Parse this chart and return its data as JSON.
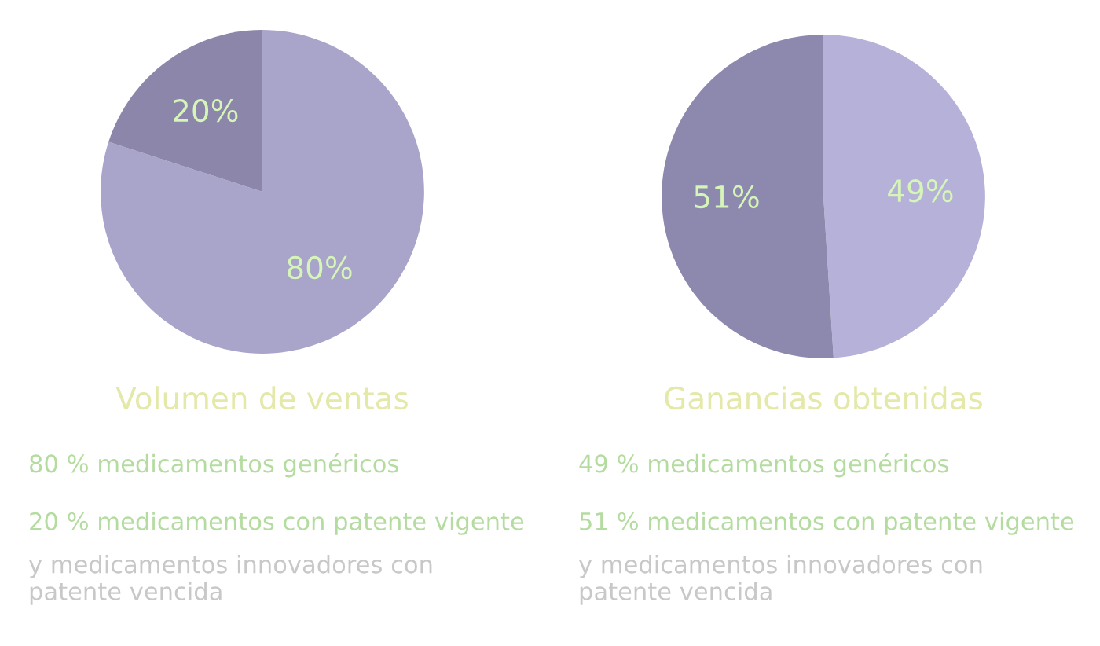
{
  "chart_data": [
    {
      "type": "pie",
      "title": "Volumen de ventas",
      "categories": [
        null,
        null
      ],
      "values": [
        80,
        20
      ],
      "colors": [
        "#a9a4c9",
        "#8b86aa"
      ],
      "value_labels": [
        "80%",
        "20%"
      ],
      "annotations": [
        "80 % medicamentos genéricos",
        "20 % medicamentos con patente vigente",
        "y medicamentos innovadores con\npatente vencida"
      ]
    },
    {
      "type": "pie",
      "title": "Ganancias obtenidas",
      "categories": [
        null,
        null
      ],
      "values": [
        49,
        51
      ],
      "colors": [
        "#b6b1d8",
        "#8d88ae"
      ],
      "value_labels": [
        "49%",
        "51%"
      ],
      "annotations": [
        "49 % medicamentos genéricos",
        "51 % medicamentos con patente vigente",
        "y medicamentos innovadores con\npatente vencida"
      ]
    }
  ]
}
